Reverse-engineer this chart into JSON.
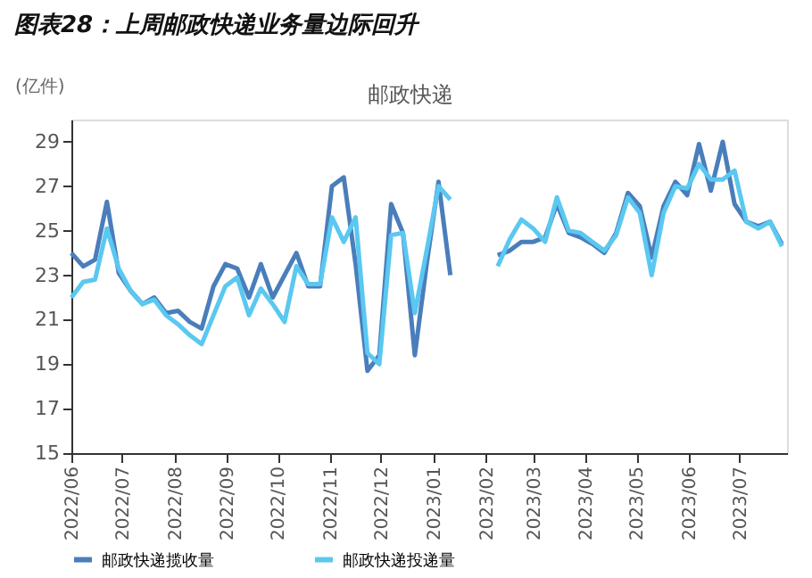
{
  "chart_data": {
    "type": "line",
    "title": "图表28：上周邮政快递业务量边际回升",
    "subtitle": "邮政快递",
    "ylabel": "(亿件)",
    "x": [
      "2022-06-01",
      "2022-06-08",
      "2022-06-15",
      "2022-06-22",
      "2022-06-29",
      "2022-07-06",
      "2022-07-13",
      "2022-07-20",
      "2022-07-27",
      "2022-08-03",
      "2022-08-10",
      "2022-08-17",
      "2022-08-24",
      "2022-08-31",
      "2022-09-07",
      "2022-09-14",
      "2022-09-21",
      "2022-09-28",
      "2022-10-05",
      "2022-10-12",
      "2022-10-19",
      "2022-10-26",
      "2022-11-02",
      "2022-11-09",
      "2022-11-16",
      "2022-11-23",
      "2022-11-30",
      "2022-12-07",
      "2022-12-14",
      "2022-12-21",
      "2022-12-28",
      "2023-01-04",
      "2023-01-11",
      "2023-01-18",
      "2023-01-25",
      "2023-02-01",
      "2023-02-08",
      "2023-02-15",
      "2023-02-22",
      "2023-03-01",
      "2023-03-08",
      "2023-03-15",
      "2023-03-22",
      "2023-03-29",
      "2023-04-05",
      "2023-04-12",
      "2023-04-19",
      "2023-04-26",
      "2023-05-03",
      "2023-05-10",
      "2023-05-17",
      "2023-05-24",
      "2023-05-31",
      "2023-06-07",
      "2023-06-14",
      "2023-06-21",
      "2023-06-28",
      "2023-07-05",
      "2023-07-12",
      "2023-07-19",
      "2023-07-26"
    ],
    "xlim": [
      "2022-06-01",
      "2023-07-29"
    ],
    "xticks": [
      {
        "value": "2022-06-01",
        "label": "2022/06"
      },
      {
        "value": "2022-07-01",
        "label": "2022/07"
      },
      {
        "value": "2022-08-01",
        "label": "2022/08"
      },
      {
        "value": "2022-09-01",
        "label": "2022/09"
      },
      {
        "value": "2022-10-01",
        "label": "2022/10"
      },
      {
        "value": "2022-11-01",
        "label": "2022/11"
      },
      {
        "value": "2022-12-01",
        "label": "2022/12"
      },
      {
        "value": "2023-01-01",
        "label": "2023/01"
      },
      {
        "value": "2023-02-01",
        "label": "2023/02"
      },
      {
        "value": "2023-03-01",
        "label": "2023/03"
      },
      {
        "value": "2023-04-01",
        "label": "2023/04"
      },
      {
        "value": "2023-05-01",
        "label": "2023/05"
      },
      {
        "value": "2023-06-01",
        "label": "2023/06"
      },
      {
        "value": "2023-07-01",
        "label": "2023/07"
      }
    ],
    "ylim": [
      15,
      30
    ],
    "yticks": [
      15,
      17,
      19,
      21,
      23,
      25,
      27,
      29
    ],
    "grid": false,
    "legend": "bottom",
    "marker": "none",
    "line_style": "solid",
    "series": [
      {
        "name": "邮政快递揽收量",
        "color": "#4a7ebb",
        "values": [
          24.0,
          23.4,
          23.7,
          26.3,
          23.1,
          22.3,
          21.7,
          22.0,
          21.3,
          21.4,
          20.9,
          20.6,
          22.5,
          23.5,
          23.3,
          22.0,
          23.5,
          22.0,
          23.0,
          24.0,
          22.5,
          22.5,
          27.0,
          27.4,
          23.5,
          18.7,
          19.4,
          26.2,
          24.9,
          19.4,
          23.5,
          27.2,
          23.0,
          null,
          null,
          null,
          23.9,
          24.1,
          24.5,
          24.5,
          24.7,
          26.2,
          24.9,
          24.7,
          24.4,
          24.0,
          24.9,
          26.7,
          26.1,
          23.8,
          26.1,
          27.2,
          26.6,
          28.9,
          26.8,
          29.0,
          26.2,
          25.4,
          25.2,
          25.4,
          24.4
        ]
      },
      {
        "name": "邮政快递投递量",
        "color": "#5ac8f0",
        "values": [
          22.0,
          22.7,
          22.8,
          25.1,
          23.3,
          22.3,
          21.7,
          21.9,
          21.2,
          20.8,
          20.3,
          19.9,
          21.2,
          22.5,
          22.9,
          21.2,
          22.4,
          21.7,
          20.9,
          23.4,
          22.6,
          22.6,
          25.6,
          24.5,
          25.6,
          19.5,
          19.0,
          24.8,
          24.9,
          21.3,
          24.1,
          27.0,
          26.4,
          null,
          null,
          null,
          23.4,
          24.6,
          25.5,
          25.1,
          24.5,
          26.5,
          25.0,
          24.9,
          24.5,
          24.1,
          24.8,
          26.5,
          25.8,
          23.0,
          25.8,
          27.0,
          26.9,
          28.0,
          27.3,
          27.3,
          27.7,
          25.4,
          25.1,
          25.4,
          24.3
        ]
      }
    ]
  }
}
